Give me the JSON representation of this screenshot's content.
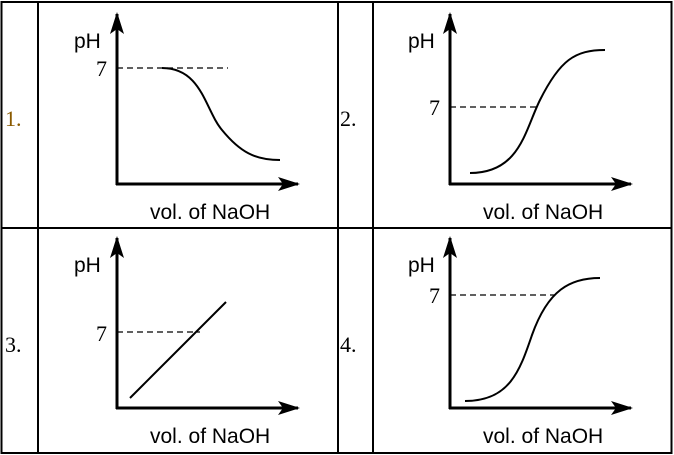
{
  "panels": [
    {
      "number": "1.",
      "y_label": "pH",
      "ref_label": "7",
      "x_label": "vol. of NaOH",
      "shape": "decreasing sigmoid from pH 7"
    },
    {
      "number": "2.",
      "y_label": "pH",
      "ref_label": "7",
      "x_label": "vol. of NaOH",
      "shape": "increasing sigmoid crossing pH 7"
    },
    {
      "number": "3.",
      "y_label": "pH",
      "ref_label": "7",
      "x_label": "vol. of NaOH",
      "shape": "straight line increasing through pH 7"
    },
    {
      "number": "4.",
      "y_label": "pH",
      "ref_label": "7",
      "x_label": "vol. of NaOH",
      "shape": "increasing sigmoid leveling at pH 7"
    }
  ],
  "colors": {
    "number_1": "#8a5a00",
    "lines": "#000000"
  }
}
